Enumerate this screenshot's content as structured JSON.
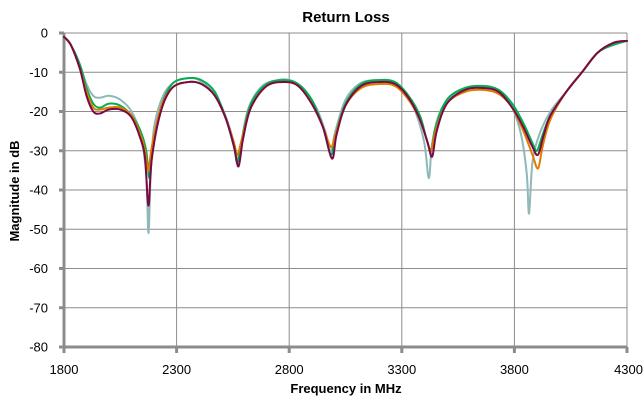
{
  "chart_data": {
    "type": "line",
    "title": "Return Loss",
    "xlabel": "Frequency in MHz",
    "ylabel": "Magnitude in dB",
    "xlim": [
      1800,
      4300
    ],
    "ylim": [
      -80,
      0
    ],
    "x_ticks": [
      1800,
      2300,
      2800,
      3300,
      3800,
      4300
    ],
    "y_ticks": [
      0,
      -10,
      -20,
      -30,
      -40,
      -50,
      -60,
      -70,
      -80
    ],
    "grid": true,
    "legend": "none",
    "series": [
      {
        "color": "#8fb8b8",
        "points": [
          [
            1800,
            -1
          ],
          [
            1830,
            -3
          ],
          [
            1870,
            -8
          ],
          [
            1900,
            -13
          ],
          [
            1930,
            -16
          ],
          [
            1960,
            -16.5
          ],
          [
            2000,
            -16
          ],
          [
            2050,
            -17
          ],
          [
            2100,
            -20
          ],
          [
            2140,
            -26
          ],
          [
            2165,
            -36
          ],
          [
            2175,
            -51
          ],
          [
            2185,
            -36
          ],
          [
            2200,
            -24
          ],
          [
            2240,
            -16
          ],
          [
            2290,
            -12.5
          ],
          [
            2350,
            -11.5
          ],
          [
            2400,
            -12
          ],
          [
            2460,
            -15
          ],
          [
            2510,
            -20
          ],
          [
            2550,
            -27
          ],
          [
            2575,
            -33
          ],
          [
            2590,
            -27
          ],
          [
            2620,
            -19
          ],
          [
            2680,
            -13.5
          ],
          [
            2750,
            -12
          ],
          [
            2800,
            -12
          ],
          [
            2860,
            -14
          ],
          [
            2920,
            -19
          ],
          [
            2960,
            -25
          ],
          [
            2985,
            -30
          ],
          [
            3005,
            -25
          ],
          [
            3050,
            -17
          ],
          [
            3110,
            -13
          ],
          [
            3180,
            -12
          ],
          [
            3250,
            -12.5
          ],
          [
            3310,
            -15
          ],
          [
            3360,
            -20
          ],
          [
            3400,
            -28
          ],
          [
            3420,
            -37
          ],
          [
            3435,
            -28
          ],
          [
            3470,
            -20
          ],
          [
            3530,
            -15.5
          ],
          [
            3600,
            -14
          ],
          [
            3680,
            -13.5
          ],
          [
            3740,
            -15
          ],
          [
            3790,
            -19
          ],
          [
            3830,
            -26
          ],
          [
            3855,
            -36
          ],
          [
            3865,
            -46
          ],
          [
            3880,
            -33
          ],
          [
            3910,
            -26
          ],
          [
            3960,
            -20
          ],
          [
            4030,
            -15
          ],
          [
            4100,
            -10
          ],
          [
            4170,
            -5
          ],
          [
            4240,
            -3
          ],
          [
            4300,
            -2
          ]
        ]
      },
      {
        "color": "#00b050",
        "points": [
          [
            1800,
            -1
          ],
          [
            1830,
            -3
          ],
          [
            1870,
            -8
          ],
          [
            1900,
            -14
          ],
          [
            1930,
            -18
          ],
          [
            1960,
            -19
          ],
          [
            2000,
            -18
          ],
          [
            2050,
            -18.5
          ],
          [
            2100,
            -21
          ],
          [
            2140,
            -25
          ],
          [
            2165,
            -30
          ],
          [
            2180,
            -37
          ],
          [
            2195,
            -29
          ],
          [
            2230,
            -19
          ],
          [
            2280,
            -13
          ],
          [
            2350,
            -11.5
          ],
          [
            2410,
            -12
          ],
          [
            2470,
            -15
          ],
          [
            2520,
            -22
          ],
          [
            2555,
            -29
          ],
          [
            2570,
            -33
          ],
          [
            2590,
            -27
          ],
          [
            2630,
            -18
          ],
          [
            2700,
            -13
          ],
          [
            2780,
            -12
          ],
          [
            2840,
            -13
          ],
          [
            2900,
            -17
          ],
          [
            2950,
            -24
          ],
          [
            2985,
            -31
          ],
          [
            3005,
            -26
          ],
          [
            3050,
            -18
          ],
          [
            3120,
            -13
          ],
          [
            3200,
            -12
          ],
          [
            3270,
            -12.5
          ],
          [
            3330,
            -16
          ],
          [
            3380,
            -21
          ],
          [
            3410,
            -27
          ],
          [
            3430,
            -30
          ],
          [
            3450,
            -24
          ],
          [
            3500,
            -17
          ],
          [
            3580,
            -14
          ],
          [
            3660,
            -13.5
          ],
          [
            3730,
            -14.5
          ],
          [
            3790,
            -18
          ],
          [
            3840,
            -23
          ],
          [
            3880,
            -28
          ],
          [
            3900,
            -30
          ],
          [
            3925,
            -26
          ],
          [
            3960,
            -21
          ],
          [
            4030,
            -15
          ],
          [
            4100,
            -10
          ],
          [
            4170,
            -5
          ],
          [
            4240,
            -3
          ],
          [
            4300,
            -2
          ]
        ]
      },
      {
        "color": "#e07b00",
        "points": [
          [
            1800,
            -1
          ],
          [
            1830,
            -3
          ],
          [
            1870,
            -9
          ],
          [
            1900,
            -15
          ],
          [
            1930,
            -19
          ],
          [
            1960,
            -19.5
          ],
          [
            2000,
            -19
          ],
          [
            2050,
            -19
          ],
          [
            2100,
            -21
          ],
          [
            2140,
            -26
          ],
          [
            2160,
            -30
          ],
          [
            2175,
            -35
          ],
          [
            2190,
            -29
          ],
          [
            2230,
            -19
          ],
          [
            2280,
            -14
          ],
          [
            2350,
            -12.5
          ],
          [
            2410,
            -13
          ],
          [
            2470,
            -16
          ],
          [
            2520,
            -22
          ],
          [
            2555,
            -28
          ],
          [
            2570,
            -31
          ],
          [
            2590,
            -27
          ],
          [
            2630,
            -19
          ],
          [
            2700,
            -13.5
          ],
          [
            2780,
            -12.5
          ],
          [
            2840,
            -13.5
          ],
          [
            2900,
            -18
          ],
          [
            2950,
            -24
          ],
          [
            2985,
            -29
          ],
          [
            3005,
            -26
          ],
          [
            3050,
            -18.5
          ],
          [
            3120,
            -14
          ],
          [
            3200,
            -13
          ],
          [
            3270,
            -13.5
          ],
          [
            3330,
            -17
          ],
          [
            3380,
            -22
          ],
          [
            3410,
            -27
          ],
          [
            3430,
            -30
          ],
          [
            3450,
            -25
          ],
          [
            3500,
            -18
          ],
          [
            3580,
            -15
          ],
          [
            3660,
            -14.5
          ],
          [
            3730,
            -15.5
          ],
          [
            3790,
            -19
          ],
          [
            3840,
            -25
          ],
          [
            3880,
            -31
          ],
          [
            3905,
            -34.5
          ],
          [
            3925,
            -29
          ],
          [
            3960,
            -22
          ],
          [
            4030,
            -15
          ],
          [
            4100,
            -10
          ],
          [
            4170,
            -5
          ],
          [
            4240,
            -2.5
          ],
          [
            4300,
            -2
          ]
        ]
      },
      {
        "color": "#7a0a45",
        "points": [
          [
            1800,
            -1
          ],
          [
            1830,
            -3
          ],
          [
            1870,
            -9
          ],
          [
            1900,
            -16
          ],
          [
            1930,
            -20
          ],
          [
            1960,
            -20.5
          ],
          [
            2000,
            -19.5
          ],
          [
            2050,
            -19.5
          ],
          [
            2100,
            -21.5
          ],
          [
            2140,
            -27
          ],
          [
            2160,
            -32
          ],
          [
            2175,
            -44
          ],
          [
            2190,
            -32
          ],
          [
            2230,
            -20
          ],
          [
            2280,
            -14
          ],
          [
            2350,
            -12.5
          ],
          [
            2410,
            -13
          ],
          [
            2470,
            -16
          ],
          [
            2520,
            -22
          ],
          [
            2555,
            -29
          ],
          [
            2575,
            -34
          ],
          [
            2595,
            -27
          ],
          [
            2630,
            -19
          ],
          [
            2700,
            -13.5
          ],
          [
            2780,
            -12.5
          ],
          [
            2840,
            -13.5
          ],
          [
            2900,
            -18
          ],
          [
            2950,
            -24
          ],
          [
            2990,
            -32
          ],
          [
            3010,
            -26
          ],
          [
            3050,
            -18.5
          ],
          [
            3120,
            -13.5
          ],
          [
            3200,
            -12.5
          ],
          [
            3270,
            -13
          ],
          [
            3330,
            -16.5
          ],
          [
            3380,
            -22
          ],
          [
            3415,
            -28
          ],
          [
            3435,
            -31.5
          ],
          [
            3455,
            -25
          ],
          [
            3500,
            -18
          ],
          [
            3580,
            -14.5
          ],
          [
            3660,
            -14
          ],
          [
            3730,
            -15
          ],
          [
            3790,
            -19
          ],
          [
            3840,
            -24
          ],
          [
            3880,
            -29
          ],
          [
            3905,
            -31
          ],
          [
            3930,
            -26
          ],
          [
            3960,
            -21
          ],
          [
            4030,
            -15
          ],
          [
            4100,
            -10
          ],
          [
            4170,
            -5
          ],
          [
            4240,
            -2.5
          ],
          [
            4300,
            -2
          ]
        ]
      }
    ]
  }
}
